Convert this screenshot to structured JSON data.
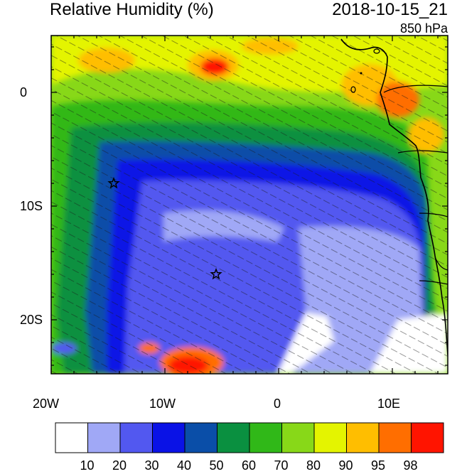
{
  "header": {
    "title": "Relative Humidity (%)",
    "datetime": "2018-10-15_21",
    "level": "850 hPa"
  },
  "axes": {
    "x_ticks": [
      "20W",
      "10W",
      "0",
      "10E"
    ],
    "y_ticks": [
      "0",
      "10S",
      "20S"
    ]
  },
  "colorbar": {
    "colors": [
      "#ffffff",
      "#a0a8f6",
      "#5258f0",
      "#0a12e6",
      "#0a4ea8",
      "#0a9040",
      "#30b818",
      "#88d818",
      "#e4f400",
      "#ffbe00",
      "#ff6e00",
      "#ff1400"
    ],
    "labels": [
      "10",
      "20",
      "30",
      "40",
      "50",
      "60",
      "70",
      "80",
      "90",
      "95",
      "98"
    ]
  },
  "map": {
    "markers": [
      {
        "name": "star-marker",
        "lon": -14.5,
        "lat": -8
      },
      {
        "name": "star-marker",
        "lon": -5.5,
        "lat": -16
      }
    ]
  }
}
